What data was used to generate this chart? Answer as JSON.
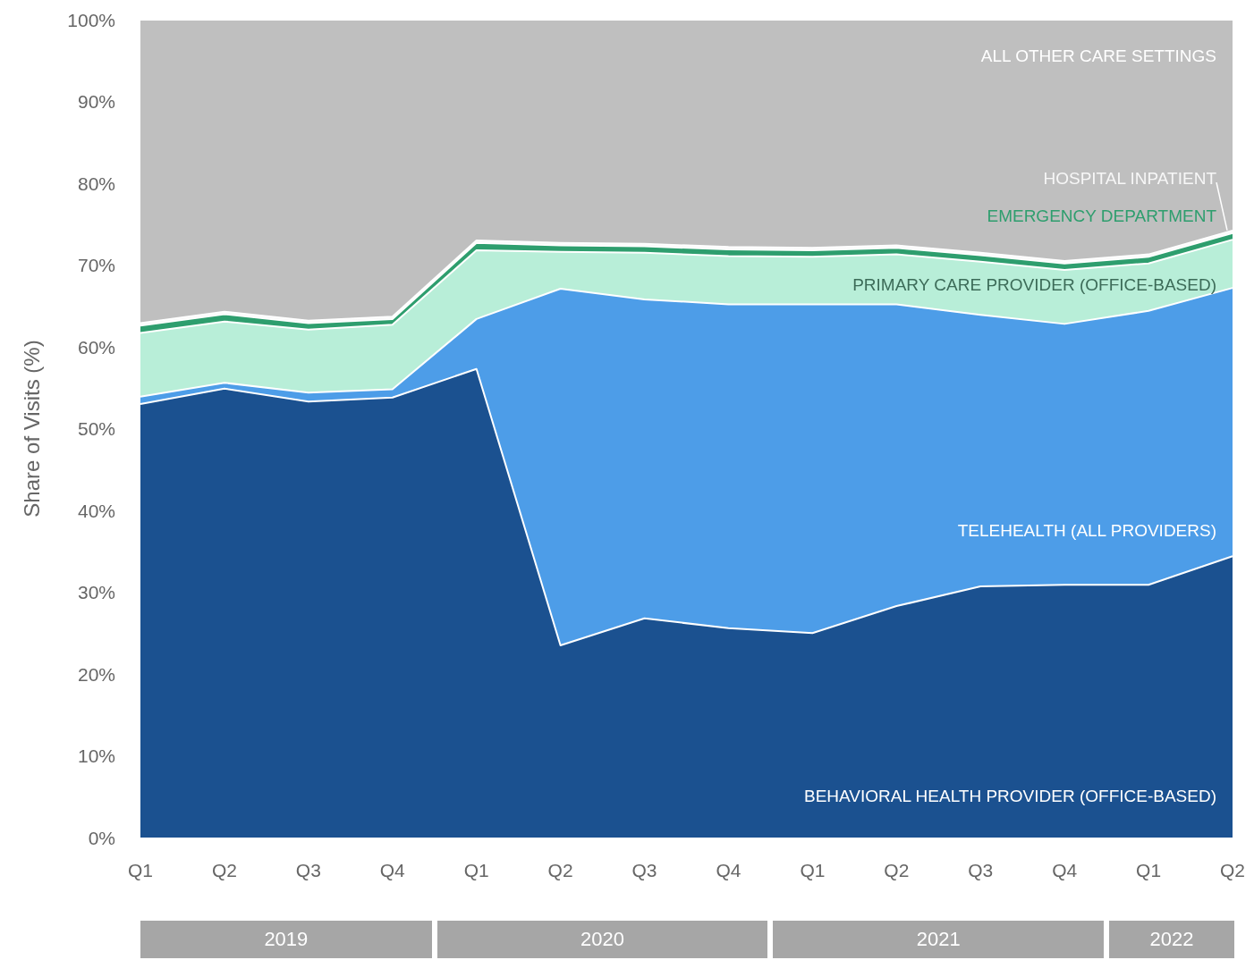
{
  "chart_data": {
    "type": "area",
    "stacked": true,
    "ylabel": "Share of Visits (%)",
    "categories": [
      "Q1",
      "Q2",
      "Q3",
      "Q4",
      "Q1",
      "Q2",
      "Q3",
      "Q4",
      "Q1",
      "Q2",
      "Q3",
      "Q4",
      "Q1",
      "Q2"
    ],
    "series": [
      {
        "name": "BEHAVIORAL HEALTH PROVIDER (OFFICE-BASED)",
        "color": "#1b5190",
        "values": [
          53.0,
          54.9,
          53.3,
          53.8,
          57.3,
          23.5,
          26.8,
          25.6,
          25.0,
          28.3,
          30.7,
          30.9,
          30.9,
          34.4
        ]
      },
      {
        "name": "TELEHEALTH (ALL PROVIDERS)",
        "color": "#4d9de8",
        "values": [
          0.9,
          0.7,
          1.1,
          1.0,
          6.1,
          43.6,
          39.0,
          39.6,
          40.2,
          36.9,
          33.2,
          31.9,
          33.5,
          32.8
        ]
      },
      {
        "name": "PRIMARY CARE PROVIDER (OFFICE-BASED)",
        "color": "#b8eed8",
        "values": [
          7.8,
          7.5,
          7.7,
          7.9,
          8.4,
          4.5,
          5.7,
          5.9,
          5.8,
          6.1,
          6.5,
          6.6,
          5.8,
          5.9
        ]
      },
      {
        "name": "EMERGENCY DEPARTMENT",
        "color": "#2e9e6e",
        "values": [
          0.9,
          0.9,
          0.8,
          0.7,
          0.9,
          0.8,
          0.8,
          0.8,
          0.8,
          0.8,
          0.8,
          0.8,
          0.8,
          0.8
        ]
      },
      {
        "name": "HOSPITAL INPATIENT",
        "color": "#f7f7f7",
        "values": [
          0.3,
          0.3,
          0.3,
          0.3,
          0.3,
          0.3,
          0.3,
          0.3,
          0.3,
          0.3,
          0.3,
          0.3,
          0.3,
          0.3
        ]
      },
      {
        "name": "ALL OTHER CARE SETTINGS",
        "color": "#bfbfbf",
        "values": [
          37.1,
          35.7,
          36.8,
          36.3,
          27.0,
          27.3,
          27.4,
          27.8,
          27.9,
          27.6,
          28.5,
          29.5,
          28.7,
          25.8
        ]
      }
    ],
    "ylim": [
      0,
      100
    ],
    "yticks": [
      {
        "value": 0,
        "label": "0%"
      },
      {
        "value": 10,
        "label": "10%"
      },
      {
        "value": 20,
        "label": "20%"
      },
      {
        "value": 30,
        "label": "30%"
      },
      {
        "value": 40,
        "label": "40%"
      },
      {
        "value": 50,
        "label": "50%"
      },
      {
        "value": 60,
        "label": "60%"
      },
      {
        "value": 70,
        "label": "70%"
      },
      {
        "value": 80,
        "label": "80%"
      },
      {
        "value": 90,
        "label": "90%"
      },
      {
        "value": 100,
        "label": "100%"
      }
    ],
    "grid": false,
    "legend": false,
    "annotations": [
      "2019",
      "2020",
      "2021",
      "2022"
    ]
  }
}
